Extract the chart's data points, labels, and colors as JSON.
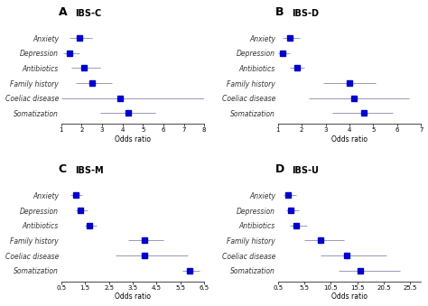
{
  "panels": [
    {
      "label": "A",
      "title": "IBS-C",
      "categories": [
        "Anxiety",
        "Depression",
        "Antibiotics",
        "Family history",
        "Coeliac disease",
        "Somatization"
      ],
      "or": [
        1.9,
        1.4,
        2.1,
        2.5,
        3.9,
        4.3
      ],
      "ci_low": [
        1.4,
        1.1,
        1.5,
        1.7,
        1.0,
        2.9
      ],
      "ci_high": [
        2.5,
        1.9,
        2.9,
        3.5,
        8.0,
        5.6
      ],
      "xlim": [
        1,
        8
      ],
      "xticks": [
        1,
        2,
        3,
        4,
        5,
        6,
        7,
        8
      ],
      "xticklabels": [
        "1",
        "2",
        "3",
        "4",
        "5",
        "6",
        "7",
        "8"
      ],
      "xlabel": "Odds ratio"
    },
    {
      "label": "B",
      "title": "IBS-D",
      "categories": [
        "Anxiety",
        "Depression",
        "Antibiotics",
        "Family history",
        "Coeliac disease",
        "Somatization"
      ],
      "or": [
        1.5,
        1.2,
        1.8,
        4.0,
        4.2,
        4.6
      ],
      "ci_low": [
        1.2,
        1.0,
        1.5,
        2.9,
        2.3,
        3.3
      ],
      "ci_high": [
        1.9,
        1.5,
        2.1,
        5.1,
        6.5,
        5.8
      ],
      "xlim": [
        1,
        7
      ],
      "xticks": [
        1,
        2,
        3,
        4,
        5,
        6,
        7
      ],
      "xticklabels": [
        "1",
        "2",
        "3",
        "4",
        "5",
        "6",
        "7"
      ],
      "xlabel": "Odds ratio"
    },
    {
      "label": "C",
      "title": "IBS-M",
      "categories": [
        "Anxiety",
        "Depression",
        "Antibiotics",
        "Family history",
        "Coeliac disease",
        "Somatization"
      ],
      "or": [
        1.1,
        1.3,
        1.7,
        4.0,
        4.0,
        5.9
      ],
      "ci_low": [
        0.9,
        1.1,
        1.5,
        3.3,
        2.8,
        5.6
      ],
      "ci_high": [
        1.4,
        1.6,
        2.0,
        4.8,
        5.8,
        6.3
      ],
      "xlim": [
        0.5,
        6.5
      ],
      "xticks": [
        0.5,
        1.5,
        2.5,
        3.5,
        4.5,
        5.5,
        6.5
      ],
      "xticklabels": [
        "0.5",
        "1.5",
        "2.5",
        "3.5",
        "4.5",
        "5.5",
        "6.5"
      ],
      "xlabel": "Odds ratio"
    },
    {
      "label": "D",
      "title": "IBS-U",
      "categories": [
        "Anxiety",
        "Depression",
        "Antibiotics",
        "Family history",
        "Coeliac disease",
        "Somatization"
      ],
      "or": [
        2.5,
        3.0,
        4.0,
        8.5,
        13.5,
        16.0
      ],
      "ci_low": [
        1.5,
        2.0,
        2.8,
        5.5,
        8.5,
        12.0
      ],
      "ci_high": [
        4.0,
        4.5,
        6.0,
        13.0,
        21.0,
        23.5
      ],
      "xlim": [
        0.5,
        27.5
      ],
      "xticks": [
        0.5,
        5.5,
        10.5,
        15.5,
        20.5,
        25.5
      ],
      "xticklabels": [
        "0.5",
        "5.5",
        "10.5",
        "15.5",
        "20.5",
        "25.5"
      ],
      "xlabel": "Odds ratio"
    }
  ],
  "marker_color": "#0000CC",
  "line_color": "#9999BB",
  "marker_size": 5,
  "label_fontsize": 5.5,
  "panel_letter_fontsize": 9,
  "panel_title_fontsize": 7,
  "axis_fontsize": 5.5,
  "tick_fontsize": 5
}
